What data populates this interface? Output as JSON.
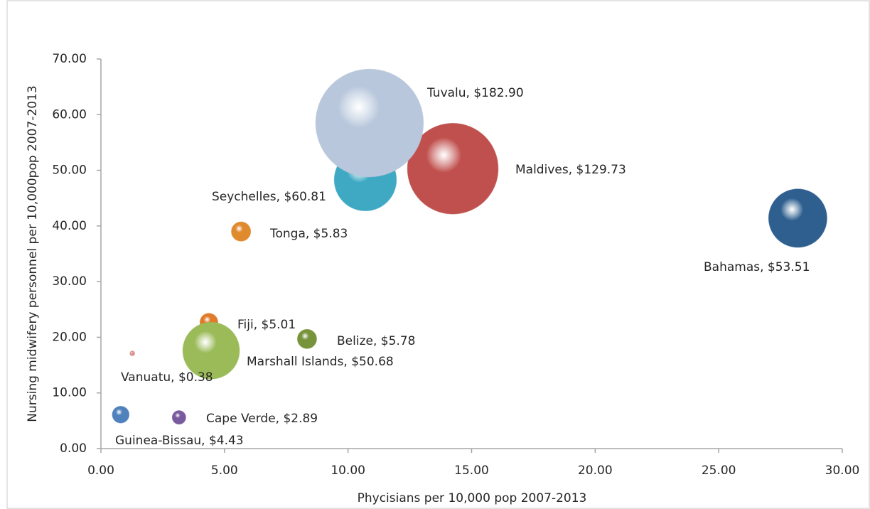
{
  "chart_data": {
    "type": "bubble",
    "x_label": "Phycisians per 10,000 pop 2007-2013",
    "y_label": "Nursing midwifery personnel per 10,000pop 2007-2013",
    "x": [
      10.7,
      14.24,
      10.87,
      28.2,
      5.67,
      4.37,
      4.46,
      8.34,
      1.27,
      0.8,
      3.16
    ],
    "y": [
      48.3,
      50.3,
      58.5,
      41.4,
      39.0,
      22.7,
      17.6,
      19.7,
      17.1,
      6.1,
      5.6
    ],
    "sizes": [
      60.81,
      129.73,
      182.9,
      53.51,
      5.83,
      5.01,
      50.68,
      5.78,
      0.38,
      4.43,
      2.89
    ],
    "value_labels": [
      "Seychelles, $60.81",
      "Maldives, $129.73",
      "Tuvalu, $182.90",
      "Bahamas, $53.51",
      "Tonga, $5.83",
      "Fiji, $5.01",
      "Marshall Islands, $50.68",
      "Belize, $5.78",
      "Vanuatu, $0.38",
      "Guinea-Bissau, $4.43",
      "Cape Verde, $2.89"
    ],
    "colors": [
      "#3fa9c4",
      "#c0504d",
      "#b8c7dc",
      "#2e5f8f",
      "#e08a2e",
      "#e07b2a",
      "#9bbb59",
      "#77933c",
      "#d99694",
      "#4f81bd",
      "#7a5a9e"
    ],
    "xlim": [
      0,
      30
    ],
    "ylim": [
      0,
      70
    ],
    "xticks": [
      {
        "value": 0,
        "label": "0.00"
      },
      {
        "value": 5,
        "label": "5.00"
      },
      {
        "value": 10,
        "label": "10.00"
      },
      {
        "value": 15,
        "label": "15.00"
      },
      {
        "value": 20,
        "label": "20.00"
      },
      {
        "value": 25,
        "label": "25.00"
      },
      {
        "value": 30,
        "label": "30.00"
      }
    ],
    "yticks": [
      {
        "value": 0,
        "label": "0.00"
      },
      {
        "value": 10,
        "label": "10.00"
      },
      {
        "value": 20,
        "label": "20.00"
      },
      {
        "value": 30,
        "label": "30.00"
      },
      {
        "value": 40,
        "label": "40.00"
      },
      {
        "value": 50,
        "label": "50.00"
      },
      {
        "value": 60,
        "label": "60.00"
      },
      {
        "value": 70,
        "label": "70.00"
      }
    ]
  }
}
